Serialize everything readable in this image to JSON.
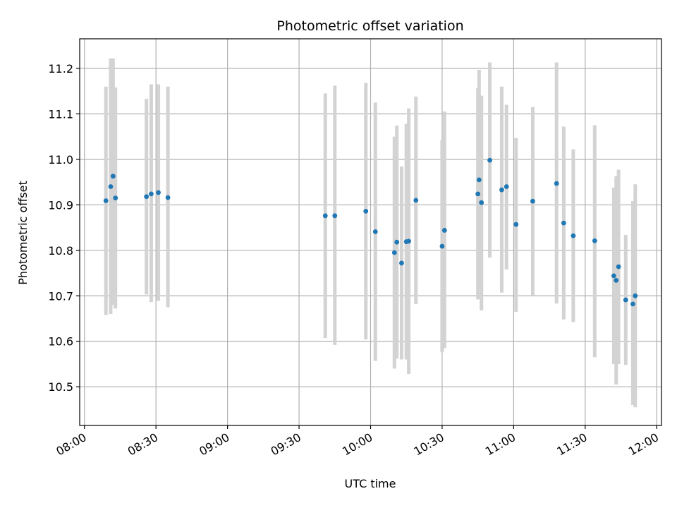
{
  "chart_data": {
    "type": "scatter",
    "title": "Photometric offset variation",
    "xlabel": "UTC time",
    "ylabel": "Photometric offset",
    "xlim": [
      "07:58",
      "12:02"
    ],
    "ylim": [
      10.415,
      11.265
    ],
    "x_ticks": [
      "08:00",
      "08:30",
      "09:00",
      "09:30",
      "10:00",
      "10:30",
      "11:00",
      "11:30",
      "12:00"
    ],
    "y_ticks": [
      "10.5",
      "10.6",
      "10.7",
      "10.8",
      "10.9",
      "11.0",
      "11.1",
      "11.2"
    ],
    "grid": true,
    "series": [
      {
        "marker_color": "#1f77b4",
        "errorbar_color": "#d3d3d3",
        "points": [
          {
            "x": "08:09:00",
            "y": 10.909,
            "ylo": 10.658,
            "yhi": 11.16
          },
          {
            "x": "08:11:00",
            "y": 10.94,
            "ylo": 10.66,
            "yhi": 11.222
          },
          {
            "x": "08:12:00",
            "y": 10.963,
            "ylo": 10.68,
            "yhi": 11.222
          },
          {
            "x": "08:13:00",
            "y": 10.915,
            "ylo": 10.672,
            "yhi": 11.158
          },
          {
            "x": "08:26:00",
            "y": 10.918,
            "ylo": 10.703,
            "yhi": 11.133
          },
          {
            "x": "08:28:00",
            "y": 10.924,
            "ylo": 10.686,
            "yhi": 11.165
          },
          {
            "x": "08:31:00",
            "y": 10.927,
            "ylo": 10.689,
            "yhi": 11.165
          },
          {
            "x": "08:35:00",
            "y": 10.916,
            "ylo": 10.675,
            "yhi": 11.16
          },
          {
            "x": "09:41:00",
            "y": 10.876,
            "ylo": 10.607,
            "yhi": 11.145
          },
          {
            "x": "09:45:00",
            "y": 10.876,
            "ylo": 10.592,
            "yhi": 11.162
          },
          {
            "x": "09:58:00",
            "y": 10.886,
            "ylo": 10.604,
            "yhi": 11.168
          },
          {
            "x": "10:02:00",
            "y": 10.841,
            "ylo": 10.557,
            "yhi": 11.125
          },
          {
            "x": "10:10:00",
            "y": 10.795,
            "ylo": 10.54,
            "yhi": 11.05
          },
          {
            "x": "10:11:00",
            "y": 10.818,
            "ylo": 10.562,
            "yhi": 11.074
          },
          {
            "x": "10:13:00",
            "y": 10.772,
            "ylo": 10.56,
            "yhi": 10.984
          },
          {
            "x": "10:16:00",
            "y": 10.82,
            "ylo": 10.528,
            "yhi": 11.112
          },
          {
            "x": "10:15:00",
            "y": 10.819,
            "ylo": 10.56,
            "yhi": 11.078
          },
          {
            "x": "10:19:00",
            "y": 10.91,
            "ylo": 10.682,
            "yhi": 11.138
          },
          {
            "x": "10:30:00",
            "y": 10.809,
            "ylo": 10.576,
            "yhi": 11.042
          },
          {
            "x": "10:31:00",
            "y": 10.844,
            "ylo": 10.585,
            "yhi": 11.105
          },
          {
            "x": "10:45:00",
            "y": 10.924,
            "ylo": 10.692,
            "yhi": 11.156
          },
          {
            "x": "10:45:30",
            "y": 10.955,
            "ylo": 10.712,
            "yhi": 11.197
          },
          {
            "x": "10:46:30",
            "y": 10.905,
            "ylo": 10.668,
            "yhi": 11.14
          },
          {
            "x": "10:50:00",
            "y": 10.998,
            "ylo": 10.784,
            "yhi": 11.213
          },
          {
            "x": "10:55:00",
            "y": 10.933,
            "ylo": 10.707,
            "yhi": 11.16
          },
          {
            "x": "10:57:00",
            "y": 10.94,
            "ylo": 10.758,
            "yhi": 11.12
          },
          {
            "x": "11:01:00",
            "y": 10.857,
            "ylo": 10.665,
            "yhi": 11.047
          },
          {
            "x": "11:08:00",
            "y": 10.908,
            "ylo": 10.7,
            "yhi": 11.115
          },
          {
            "x": "11:18:00",
            "y": 10.947,
            "ylo": 10.683,
            "yhi": 11.213
          },
          {
            "x": "11:21:00",
            "y": 10.86,
            "ylo": 10.648,
            "yhi": 11.072
          },
          {
            "x": "11:25:00",
            "y": 10.832,
            "ylo": 10.642,
            "yhi": 11.022
          },
          {
            "x": "11:34:00",
            "y": 10.821,
            "ylo": 10.565,
            "yhi": 11.075
          },
          {
            "x": "11:42:00",
            "y": 10.744,
            "ylo": 10.55,
            "yhi": 10.938
          },
          {
            "x": "11:43:00",
            "y": 10.734,
            "ylo": 10.505,
            "yhi": 10.963
          },
          {
            "x": "11:44:00",
            "y": 10.764,
            "ylo": 10.55,
            "yhi": 10.977
          },
          {
            "x": "11:47:00",
            "y": 10.691,
            "ylo": 10.548,
            "yhi": 10.834
          },
          {
            "x": "11:50:00",
            "y": 10.682,
            "ylo": 10.46,
            "yhi": 10.908
          },
          {
            "x": "11:51:00",
            "y": 10.7,
            "ylo": 10.455,
            "yhi": 10.945
          }
        ]
      }
    ]
  }
}
